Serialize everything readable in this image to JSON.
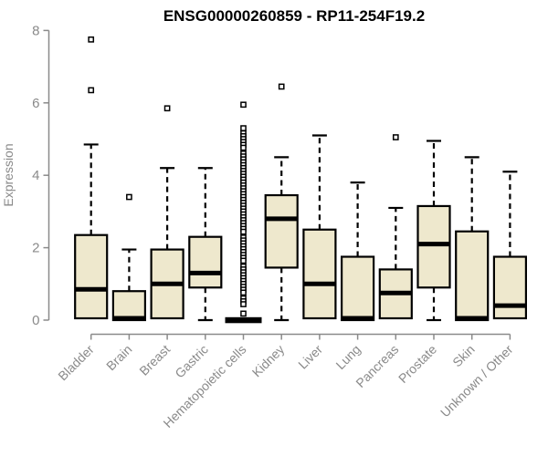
{
  "chart_data": {
    "type": "boxplot",
    "title": "ENSG00000260859 - RP11-254F19.2",
    "ylabel": "Expression",
    "xlabel": "",
    "ylim": [
      0,
      8
    ],
    "yticks": [
      0,
      2,
      4,
      6,
      8
    ],
    "grid": false,
    "legend": null,
    "categories": [
      "Bladder",
      "Brain",
      "Breast",
      "Gastric",
      "Hematopoietic cells",
      "Kidney",
      "Liver",
      "Lung",
      "Pancreas",
      "Prostate",
      "Skin",
      "Unknown / Other"
    ],
    "boxes": [
      {
        "category": "Bladder",
        "whislo": 0.05,
        "q1": 0.05,
        "median": 0.85,
        "q3": 2.35,
        "whishi": 4.85,
        "outliers": [
          6.35,
          7.75
        ]
      },
      {
        "category": "Brain",
        "whislo": 0,
        "q1": 0,
        "median": 0.05,
        "q3": 0.8,
        "whishi": 1.95,
        "outliers": [
          3.4
        ]
      },
      {
        "category": "Breast",
        "whislo": 0.05,
        "q1": 0.05,
        "median": 1.0,
        "q3": 1.95,
        "whishi": 4.2,
        "outliers": [
          5.85
        ]
      },
      {
        "category": "Gastric",
        "whislo": 0,
        "q1": 0.9,
        "median": 1.3,
        "q3": 2.3,
        "whishi": 4.2,
        "outliers": []
      },
      {
        "category": "Hematopoietic cells",
        "whislo": 0,
        "q1": 0,
        "median": 0,
        "q3": 0,
        "whishi": 0,
        "outliers": [
          5.95,
          5.3,
          5.16,
          5.08,
          5.0,
          4.92,
          4.84,
          4.76,
          4.6,
          4.52,
          4.44,
          4.36,
          4.28,
          4.2,
          4.12,
          4.04,
          3.96,
          3.88,
          3.8,
          3.72,
          3.64,
          3.56,
          3.48,
          3.4,
          3.32,
          3.24,
          3.16,
          3.08,
          3.0,
          2.92,
          2.84,
          2.76,
          2.68,
          2.6,
          2.52,
          2.44,
          2.28,
          2.2,
          2.12,
          2.04,
          1.96,
          1.88,
          1.8,
          1.72,
          1.64,
          1.48,
          1.4,
          1.32,
          1.24,
          1.16,
          1.08,
          1.0,
          0.92,
          0.84,
          0.76,
          0.6,
          0.52,
          0.44,
          0.18
        ]
      },
      {
        "category": "Kidney",
        "whislo": 0,
        "q1": 1.45,
        "median": 2.8,
        "q3": 3.45,
        "whishi": 4.5,
        "outliers": [
          6.45
        ]
      },
      {
        "category": "Liver",
        "whislo": 0.05,
        "q1": 0.05,
        "median": 1.0,
        "q3": 2.5,
        "whishi": 5.1,
        "outliers": []
      },
      {
        "category": "Lung",
        "whislo": 0,
        "q1": 0,
        "median": 0.05,
        "q3": 1.75,
        "whishi": 3.8,
        "outliers": []
      },
      {
        "category": "Pancreas",
        "whislo": 0.05,
        "q1": 0.05,
        "median": 0.75,
        "q3": 1.4,
        "whishi": 3.1,
        "outliers": [
          5.05
        ]
      },
      {
        "category": "Prostate",
        "whislo": 0,
        "q1": 0.9,
        "median": 2.1,
        "q3": 3.15,
        "whishi": 4.95,
        "outliers": []
      },
      {
        "category": "Skin",
        "whislo": 0,
        "q1": 0,
        "median": 0.05,
        "q3": 2.45,
        "whishi": 4.5,
        "outliers": []
      },
      {
        "category": "Unknown / Other",
        "whislo": 0.05,
        "q1": 0.05,
        "median": 0.4,
        "q3": 1.75,
        "whishi": 4.1,
        "outliers": []
      }
    ],
    "style": {
      "box_fill": "#EEE8CD",
      "box_stroke": "#000000",
      "median_color": "#000000",
      "whisker_color": "#000000",
      "outlier_color": "#000000",
      "axis_color": "#8A8A8A",
      "label_color": "#8A8A8A",
      "title_color": "#000000",
      "background": "#FFFFFF"
    }
  }
}
